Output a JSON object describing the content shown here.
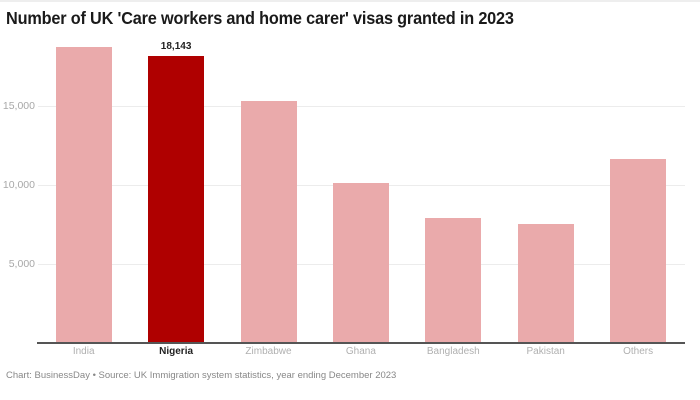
{
  "header": {
    "title": "Number of UK 'Care workers and home carer' visas granted in 2023"
  },
  "footer": {
    "credit": "Chart: BusinessDay • Source: UK Immigration system statistics, year ending December 2023"
  },
  "colors": {
    "highlight": "#AF0000",
    "default_bar": "#EAAAAB",
    "gridline": "#ECECEC",
    "baseline": "#555555"
  },
  "chart_data": {
    "type": "bar",
    "title": "Number of UK 'Care workers and home carer' visas granted in 2023",
    "xlabel": "",
    "ylabel": "",
    "categories": [
      "India",
      "Nigeria",
      "Zimbabwe",
      "Ghana",
      "Bangladesh",
      "Pakistan",
      "Others"
    ],
    "values": [
      18690,
      18143,
      15270,
      10110,
      7880,
      7480,
      11600
    ],
    "highlighted": "Nigeria",
    "data_labels": {
      "Nigeria": "18,143"
    },
    "yticks": [
      5000,
      10000,
      15000
    ],
    "ytick_labels": [
      "5,000",
      "10,000",
      "15,000"
    ],
    "ylim": [
      0,
      20000
    ],
    "grid": true,
    "legend": null
  }
}
